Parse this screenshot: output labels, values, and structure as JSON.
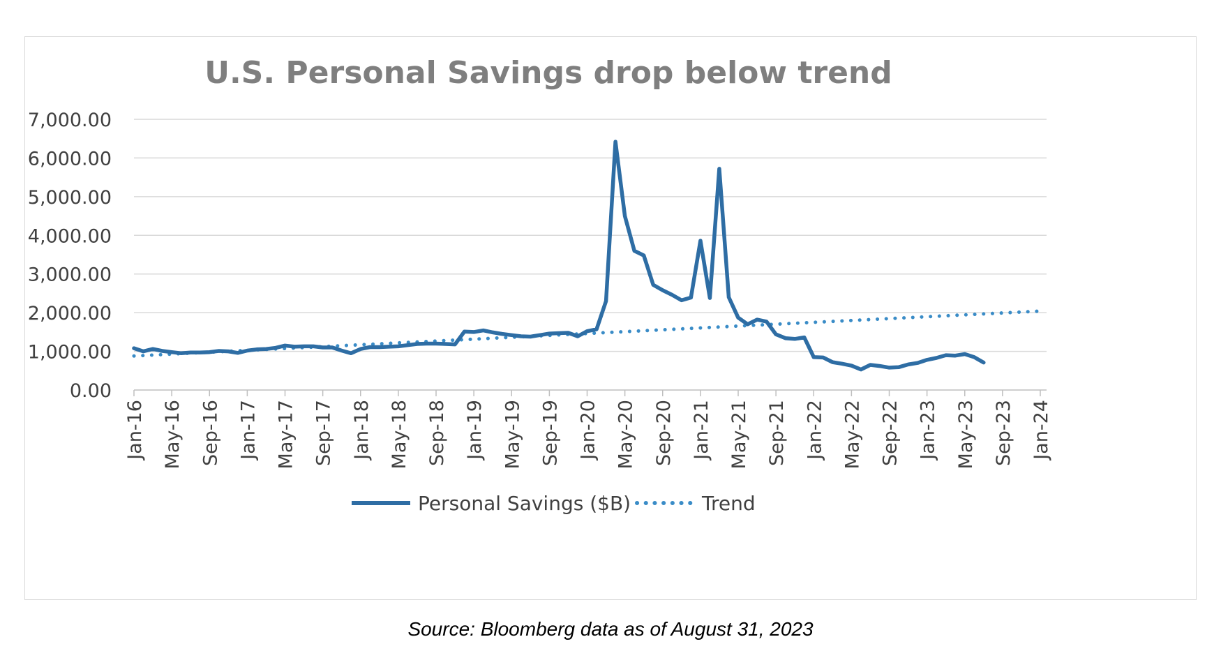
{
  "chart_data": {
    "type": "line",
    "title": "U.S. Personal Savings drop below trend",
    "xlabel": "",
    "ylabel": "",
    "ylim": [
      0,
      7000
    ],
    "y_ticks": [
      "0.00",
      "1,000.00",
      "2,000.00",
      "3,000.00",
      "4,000.00",
      "5,000.00",
      "6,000.00",
      "7,000.00"
    ],
    "y_tick_values": [
      0,
      1000,
      2000,
      3000,
      4000,
      5000,
      6000,
      7000
    ],
    "x_range": [
      "2016-01",
      "2024-01"
    ],
    "x_ticks": [
      "Jan-16",
      "May-16",
      "Sep-16",
      "Jan-17",
      "May-17",
      "Sep-17",
      "Jan-18",
      "May-18",
      "Sep-18",
      "Jan-19",
      "May-19",
      "Sep-19",
      "Jan-20",
      "May-20",
      "Sep-20",
      "Jan-21",
      "May-21",
      "Sep-21",
      "Jan-22",
      "May-22",
      "Sep-22",
      "Jan-23",
      "May-23",
      "Sep-23",
      "Jan-24"
    ],
    "x_tick_dates": [
      "2016-01",
      "2016-05",
      "2016-09",
      "2017-01",
      "2017-05",
      "2017-09",
      "2018-01",
      "2018-05",
      "2018-09",
      "2019-01",
      "2019-05",
      "2019-09",
      "2020-01",
      "2020-05",
      "2020-09",
      "2021-01",
      "2021-05",
      "2021-09",
      "2022-01",
      "2022-05",
      "2022-09",
      "2023-01",
      "2023-05",
      "2023-09",
      "2024-01"
    ],
    "grid": true,
    "legend_position": "bottom",
    "series": [
      {
        "name": "Personal Savings ($B)",
        "color": "#2e6da4",
        "style": "solid",
        "x": [
          "2016-01",
          "2016-02",
          "2016-03",
          "2016-04",
          "2016-05",
          "2016-06",
          "2016-07",
          "2016-08",
          "2016-09",
          "2016-10",
          "2016-11",
          "2016-12",
          "2017-01",
          "2017-02",
          "2017-03",
          "2017-04",
          "2017-05",
          "2017-06",
          "2017-07",
          "2017-08",
          "2017-09",
          "2017-10",
          "2017-11",
          "2017-12",
          "2018-01",
          "2018-02",
          "2018-03",
          "2018-04",
          "2018-05",
          "2018-06",
          "2018-07",
          "2018-08",
          "2018-09",
          "2018-10",
          "2018-11",
          "2018-12",
          "2019-01",
          "2019-02",
          "2019-03",
          "2019-04",
          "2019-05",
          "2019-06",
          "2019-07",
          "2019-08",
          "2019-09",
          "2019-10",
          "2019-11",
          "2019-12",
          "2020-01",
          "2020-02",
          "2020-03",
          "2020-04",
          "2020-05",
          "2020-06",
          "2020-07",
          "2020-08",
          "2020-09",
          "2020-10",
          "2020-11",
          "2020-12",
          "2021-01",
          "2021-02",
          "2021-03",
          "2021-04",
          "2021-05",
          "2021-06",
          "2021-07",
          "2021-08",
          "2021-09",
          "2021-10",
          "2021-11",
          "2021-12",
          "2022-01",
          "2022-02",
          "2022-03",
          "2022-04",
          "2022-05",
          "2022-06",
          "2022-07",
          "2022-08",
          "2022-09",
          "2022-10",
          "2022-11",
          "2022-12",
          "2023-01",
          "2023-02",
          "2023-03",
          "2023-04",
          "2023-05",
          "2023-06",
          "2023-07"
        ],
        "values": [
          1080,
          1000,
          1060,
          1010,
          980,
          950,
          970,
          970,
          980,
          1010,
          1000,
          960,
          1020,
          1050,
          1060,
          1090,
          1150,
          1120,
          1130,
          1130,
          1100,
          1100,
          1020,
          950,
          1060,
          1110,
          1110,
          1120,
          1130,
          1160,
          1190,
          1200,
          1200,
          1190,
          1180,
          1510,
          1500,
          1540,
          1490,
          1450,
          1420,
          1390,
          1380,
          1420,
          1460,
          1470,
          1480,
          1390,
          1520,
          1570,
          2300,
          6420,
          4500,
          3600,
          3480,
          2720,
          2580,
          2460,
          2320,
          2390,
          3860,
          2380,
          5720,
          2400,
          1870,
          1700,
          1820,
          1770,
          1440,
          1340,
          1320,
          1360,
          850,
          840,
          720,
          680,
          630,
          530,
          650,
          620,
          580,
          590,
          660,
          700,
          780,
          830,
          900,
          890,
          930,
          850,
          710
        ]
      },
      {
        "name": "Trend",
        "color": "#3a8cc7",
        "style": "dotted",
        "x": [
          "2016-01",
          "2024-01"
        ],
        "values": [
          880,
          2040
        ]
      }
    ]
  },
  "source_note": "Source: Bloomberg data as of August 31, 2023"
}
